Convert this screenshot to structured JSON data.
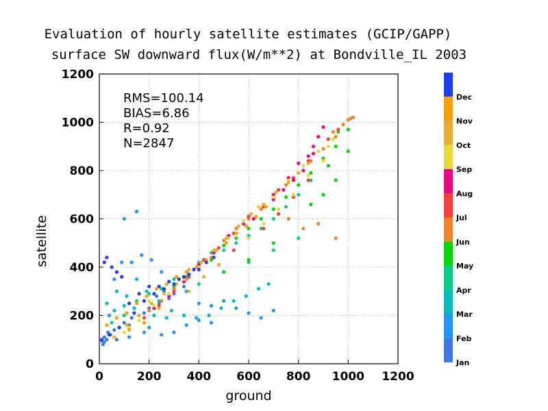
{
  "chart_data": {
    "type": "scatter",
    "title": "Evaluation of hourly satellite estimates (GCIP/GAPP)",
    "subtitle": "surface SW downward flux(W/m**2) at Bondville_IL 2003",
    "xlabel": "ground",
    "ylabel": "satellite",
    "xlim": [
      0,
      1200
    ],
    "ylim": [
      0,
      1200
    ],
    "xticks": [
      "0",
      "200",
      "400",
      "600",
      "800",
      "1000",
      "1200"
    ],
    "yticks": [
      "0",
      "200",
      "400",
      "600",
      "800",
      "1000",
      "1200"
    ],
    "grid": true,
    "stats": [
      "RMS=100.14",
      "BIAS=6.86",
      "R=0.92",
      "N=2847"
    ],
    "legend_placement": "right",
    "legend": [
      {
        "name": "Jan",
        "color": "#3c78e8"
      },
      {
        "name": "Feb",
        "color": "#1e96ff"
      },
      {
        "name": "Mar",
        "color": "#00bebe"
      },
      {
        "name": "Apr",
        "color": "#00d28c"
      },
      {
        "name": "May",
        "color": "#00dc00"
      },
      {
        "name": "Jun",
        "color": "#f08228"
      },
      {
        "name": "Jul",
        "color": "#fa3c3c"
      },
      {
        "name": "Aug",
        "color": "#f00082"
      },
      {
        "name": "Sep",
        "color": "#e6dc32"
      },
      {
        "name": "Oct",
        "color": "#e6af2d"
      },
      {
        "name": "Nov",
        "color": "#ffa000"
      },
      {
        "name": "Dec",
        "color": "#1e3cff"
      }
    ],
    "series": [
      {
        "name": "Jan",
        "points": [
          [
            10,
            95
          ],
          [
            20,
            110
          ],
          [
            30,
            100
          ],
          [
            45,
            120
          ],
          [
            60,
            140
          ],
          [
            80,
            150
          ],
          [
            100,
            170
          ],
          [
            130,
            190
          ],
          [
            160,
            200
          ],
          [
            200,
            230
          ],
          [
            240,
            250
          ],
          [
            280,
            270
          ],
          [
            300,
            290
          ],
          [
            340,
            320
          ],
          [
            15,
            80
          ],
          [
            35,
            130
          ],
          [
            70,
            100
          ],
          [
            120,
            160
          ],
          [
            180,
            210
          ],
          [
            230,
            280
          ],
          [
            260,
            300
          ]
        ]
      },
      {
        "name": "Feb",
        "points": [
          [
            20,
            90
          ],
          [
            40,
            200
          ],
          [
            60,
            350
          ],
          [
            90,
            420
          ],
          [
            130,
            420
          ],
          [
            170,
            450
          ],
          [
            210,
            430
          ],
          [
            250,
            380
          ],
          [
            300,
            330
          ],
          [
            350,
            300
          ],
          [
            400,
            250
          ],
          [
            450,
            240
          ],
          [
            500,
            260
          ],
          [
            550,
            230
          ],
          [
            600,
            210
          ],
          [
            650,
            190
          ],
          [
            700,
            220
          ],
          [
            100,
            600
          ],
          [
            150,
            630
          ],
          [
            200,
            150
          ],
          [
            250,
            120
          ],
          [
            300,
            130
          ],
          [
            350,
            160
          ],
          [
            400,
            180
          ],
          [
            450,
            170
          ],
          [
            120,
            110
          ],
          [
            180,
            130
          ]
        ]
      },
      {
        "name": "Mar",
        "points": [
          [
            30,
            250
          ],
          [
            70,
            300
          ],
          [
            110,
            280
          ],
          [
            150,
            350
          ],
          [
            190,
            300
          ],
          [
            240,
            260
          ],
          [
            290,
            220
          ],
          [
            340,
            200
          ],
          [
            390,
            190
          ],
          [
            440,
            200
          ],
          [
            490,
            230
          ],
          [
            540,
            260
          ],
          [
            590,
            280
          ],
          [
            640,
            310
          ],
          [
            680,
            330
          ],
          [
            60,
            220
          ],
          [
            100,
            240
          ],
          [
            140,
            230
          ],
          [
            220,
            200
          ],
          [
            270,
            190
          ]
        ]
      },
      {
        "name": "Apr",
        "points": [
          [
            50,
            170
          ],
          [
            100,
            200
          ],
          [
            150,
            260
          ],
          [
            200,
            290
          ],
          [
            250,
            310
          ],
          [
            300,
            350
          ],
          [
            350,
            380
          ],
          [
            400,
            420
          ],
          [
            450,
            460
          ],
          [
            500,
            470
          ],
          [
            550,
            500
          ],
          [
            600,
            530
          ],
          [
            650,
            560
          ],
          [
            700,
            600
          ],
          [
            750,
            650
          ],
          [
            800,
            700
          ],
          [
            850,
            760
          ],
          [
            400,
            330
          ],
          [
            500,
            380
          ],
          [
            600,
            420
          ],
          [
            700,
            470
          ],
          [
            800,
            520
          ]
        ]
      },
      {
        "name": "May",
        "points": [
          [
            300,
            320
          ],
          [
            350,
            360
          ],
          [
            400,
            410
          ],
          [
            450,
            430
          ],
          [
            500,
            490
          ],
          [
            550,
            520
          ],
          [
            600,
            560
          ],
          [
            650,
            600
          ],
          [
            700,
            640
          ],
          [
            750,
            690
          ],
          [
            800,
            740
          ],
          [
            850,
            790
          ],
          [
            900,
            850
          ],
          [
            950,
            900
          ],
          [
            1000,
            970
          ],
          [
            850,
            660
          ],
          [
            900,
            700
          ],
          [
            950,
            760
          ],
          [
            1000,
            880
          ],
          [
            500,
            380
          ],
          [
            600,
            430
          ],
          [
            700,
            500
          ],
          [
            920,
            820
          ],
          [
            960,
            960
          ]
        ]
      },
      {
        "name": "Jun",
        "points": [
          [
            200,
            220
          ],
          [
            250,
            260
          ],
          [
            300,
            310
          ],
          [
            350,
            350
          ],
          [
            400,
            400
          ],
          [
            450,
            440
          ],
          [
            500,
            510
          ],
          [
            550,
            560
          ],
          [
            600,
            600
          ],
          [
            650,
            640
          ],
          [
            700,
            690
          ],
          [
            750,
            740
          ],
          [
            800,
            790
          ],
          [
            850,
            840
          ],
          [
            900,
            890
          ],
          [
            950,
            940
          ],
          [
            1000,
            1010
          ],
          [
            1020,
            1020
          ],
          [
            1010,
            1015
          ],
          [
            980,
            990
          ],
          [
            940,
            960
          ],
          [
            950,
            520
          ],
          [
            880,
            580
          ],
          [
            820,
            560
          ],
          [
            760,
            600
          ]
        ]
      },
      {
        "name": "Jul",
        "points": [
          [
            180,
            190
          ],
          [
            240,
            240
          ],
          [
            300,
            300
          ],
          [
            360,
            360
          ],
          [
            420,
            430
          ],
          [
            480,
            480
          ],
          [
            540,
            540
          ],
          [
            600,
            610
          ],
          [
            660,
            650
          ],
          [
            720,
            720
          ],
          [
            780,
            770
          ],
          [
            840,
            840
          ],
          [
            880,
            880
          ],
          [
            920,
            930
          ],
          [
            960,
            970
          ],
          [
            660,
            560
          ],
          [
            720,
            620
          ],
          [
            780,
            690
          ],
          [
            840,
            760
          ],
          [
            480,
            410
          ],
          [
            540,
            470
          ]
        ]
      },
      {
        "name": "Aug",
        "points": [
          [
            220,
            230
          ],
          [
            280,
            280
          ],
          [
            340,
            340
          ],
          [
            400,
            410
          ],
          [
            460,
            460
          ],
          [
            520,
            530
          ],
          [
            580,
            580
          ],
          [
            640,
            650
          ],
          [
            700,
            700
          ],
          [
            760,
            770
          ],
          [
            800,
            830
          ],
          [
            840,
            860
          ],
          [
            860,
            900
          ],
          [
            880,
            940
          ],
          [
            900,
            980
          ],
          [
            820,
            800
          ],
          [
            780,
            760
          ],
          [
            740,
            720
          ],
          [
            700,
            680
          ],
          [
            860,
            870
          ],
          [
            620,
            600
          ]
        ]
      },
      {
        "name": "Sep",
        "points": [
          [
            100,
            130
          ],
          [
            160,
            180
          ],
          [
            220,
            240
          ],
          [
            280,
            290
          ],
          [
            340,
            350
          ],
          [
            400,
            400
          ],
          [
            460,
            470
          ],
          [
            520,
            520
          ],
          [
            580,
            590
          ],
          [
            640,
            650
          ],
          [
            700,
            690
          ],
          [
            760,
            760
          ],
          [
            820,
            820
          ],
          [
            880,
            880
          ],
          [
            920,
            900
          ],
          [
            940,
            930
          ],
          [
            600,
            520
          ],
          [
            660,
            580
          ],
          [
            720,
            640
          ],
          [
            780,
            700
          ],
          [
            840,
            780
          ],
          [
            900,
            840
          ],
          [
            120,
            150
          ],
          [
            200,
            260
          ]
        ]
      },
      {
        "name": "Oct",
        "points": [
          [
            60,
            110
          ],
          [
            110,
            160
          ],
          [
            160,
            200
          ],
          [
            210,
            250
          ],
          [
            260,
            290
          ],
          [
            310,
            330
          ],
          [
            360,
            390
          ],
          [
            410,
            420
          ],
          [
            460,
            470
          ],
          [
            510,
            520
          ],
          [
            560,
            570
          ],
          [
            610,
            620
          ],
          [
            660,
            660
          ],
          [
            710,
            710
          ],
          [
            760,
            750
          ],
          [
            800,
            790
          ],
          [
            840,
            830
          ],
          [
            360,
            300
          ],
          [
            420,
            360
          ],
          [
            480,
            410
          ]
        ]
      },
      {
        "name": "Nov",
        "points": [
          [
            30,
            160
          ],
          [
            70,
            190
          ],
          [
            110,
            210
          ],
          [
            150,
            250
          ],
          [
            190,
            280
          ],
          [
            230,
            310
          ],
          [
            270,
            330
          ],
          [
            310,
            360
          ],
          [
            350,
            380
          ],
          [
            390,
            400
          ],
          [
            430,
            430
          ],
          [
            470,
            470
          ],
          [
            510,
            500
          ],
          [
            550,
            540
          ],
          [
            590,
            570
          ],
          [
            630,
            610
          ],
          [
            670,
            650
          ],
          [
            120,
            140
          ],
          [
            180,
            170
          ],
          [
            240,
            230
          ]
        ]
      },
      {
        "name": "Dec",
        "points": [
          [
            10,
            100
          ],
          [
            20,
            420
          ],
          [
            30,
            440
          ],
          [
            50,
            400
          ],
          [
            70,
            380
          ],
          [
            90,
            360
          ],
          [
            120,
            250
          ],
          [
            160,
            290
          ],
          [
            200,
            320
          ],
          [
            240,
            320
          ],
          [
            280,
            340
          ],
          [
            320,
            350
          ],
          [
            360,
            370
          ],
          [
            400,
            390
          ],
          [
            430,
            420
          ],
          [
            460,
            440
          ],
          [
            40,
            120
          ],
          [
            80,
            150
          ],
          [
            140,
            210
          ],
          [
            180,
            260
          ],
          [
            220,
            290
          ],
          [
            260,
            310
          ],
          [
            300,
            330
          ],
          [
            340,
            360
          ],
          [
            380,
            390
          ]
        ]
      }
    ]
  }
}
